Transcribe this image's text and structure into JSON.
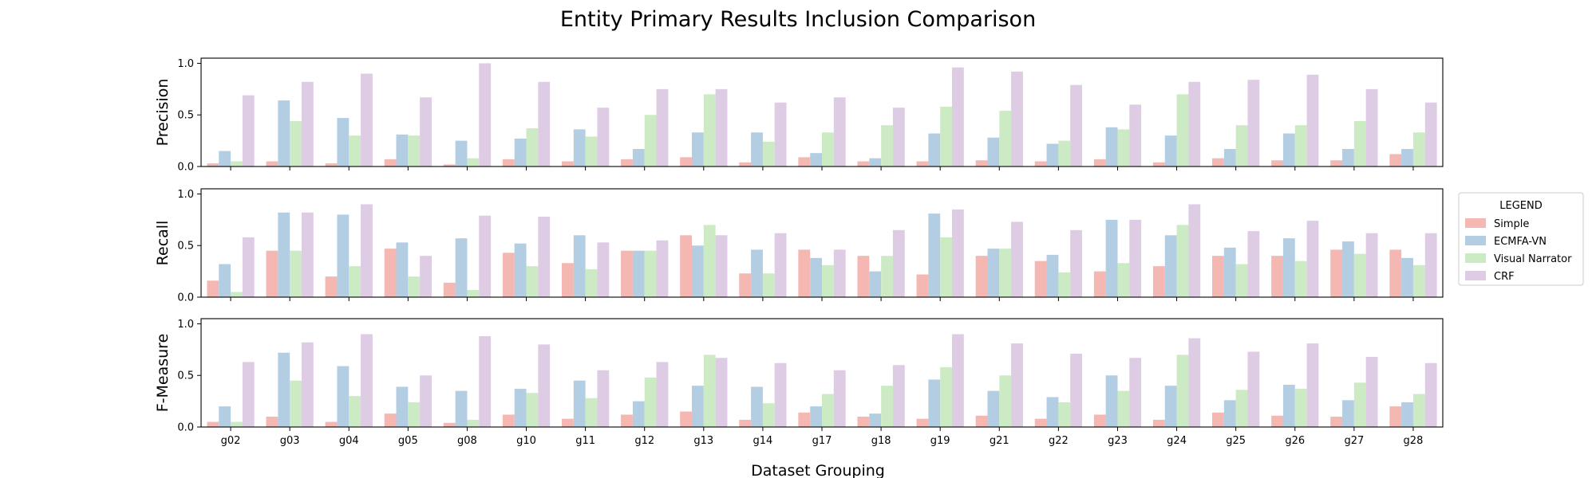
{
  "chart_data": {
    "type": "bar",
    "title": "Entity Primary Results Inclusion Comparison",
    "xlabel": "Dataset Grouping",
    "categories": [
      "g02",
      "g03",
      "g04",
      "g05",
      "g08",
      "g10",
      "g11",
      "g12",
      "g13",
      "g14",
      "g17",
      "g18",
      "g19",
      "g21",
      "g22",
      "g23",
      "g24",
      "g25",
      "g26",
      "g27",
      "g28"
    ],
    "ylim": [
      0,
      1.05
    ],
    "yticks": [
      "0.0",
      "0.5",
      "1.0"
    ],
    "legend": {
      "title": "LEGEND",
      "placement": "center-right"
    },
    "series": [
      {
        "name": "Simple",
        "color": "#f4b7b2"
      },
      {
        "name": "ECMFA-VN",
        "color": "#b3cde3"
      },
      {
        "name": "Visual Narrator",
        "color": "#ccebc5"
      },
      {
        "name": "CRF",
        "color": "#decbe4"
      }
    ],
    "panels": [
      {
        "ylabel": "Precision",
        "values": [
          [
            0.03,
            0.05,
            0.03,
            0.07,
            0.02,
            0.07,
            0.05,
            0.07,
            0.09,
            0.04,
            0.09,
            0.05,
            0.05,
            0.06,
            0.05,
            0.07,
            0.04,
            0.08,
            0.06,
            0.06,
            0.12
          ],
          [
            0.15,
            0.64,
            0.47,
            0.31,
            0.25,
            0.27,
            0.36,
            0.17,
            0.33,
            0.33,
            0.13,
            0.08,
            0.32,
            0.28,
            0.22,
            0.38,
            0.3,
            0.17,
            0.32,
            0.17,
            0.17
          ],
          [
            0.05,
            0.44,
            0.3,
            0.3,
            0.08,
            0.37,
            0.29,
            0.5,
            0.7,
            0.24,
            0.33,
            0.4,
            0.58,
            0.54,
            0.25,
            0.36,
            0.7,
            0.4,
            0.4,
            0.44,
            0.33
          ],
          [
            0.69,
            0.82,
            0.9,
            0.67,
            1.0,
            0.82,
            0.57,
            0.75,
            0.75,
            0.62,
            0.67,
            0.57,
            0.96,
            0.92,
            0.79,
            0.6,
            0.82,
            0.84,
            0.89,
            0.75,
            0.62
          ]
        ]
      },
      {
        "ylabel": "Recall",
        "values": [
          [
            0.16,
            0.45,
            0.2,
            0.47,
            0.14,
            0.43,
            0.33,
            0.45,
            0.6,
            0.23,
            0.46,
            0.4,
            0.22,
            0.4,
            0.35,
            0.25,
            0.3,
            0.4,
            0.4,
            0.46,
            0.46
          ],
          [
            0.32,
            0.82,
            0.8,
            0.53,
            0.57,
            0.52,
            0.6,
            0.45,
            0.5,
            0.46,
            0.38,
            0.25,
            0.81,
            0.47,
            0.41,
            0.75,
            0.6,
            0.48,
            0.57,
            0.54,
            0.38
          ],
          [
            0.05,
            0.45,
            0.3,
            0.2,
            0.07,
            0.3,
            0.27,
            0.45,
            0.7,
            0.23,
            0.31,
            0.4,
            0.58,
            0.47,
            0.24,
            0.33,
            0.7,
            0.32,
            0.35,
            0.42,
            0.31
          ],
          [
            0.58,
            0.82,
            0.9,
            0.4,
            0.79,
            0.78,
            0.53,
            0.55,
            0.6,
            0.62,
            0.46,
            0.65,
            0.85,
            0.73,
            0.65,
            0.75,
            0.9,
            0.64,
            0.74,
            0.62,
            0.62
          ]
        ]
      },
      {
        "ylabel": "F-Measure",
        "values": [
          [
            0.05,
            0.1,
            0.05,
            0.13,
            0.04,
            0.12,
            0.08,
            0.12,
            0.15,
            0.07,
            0.14,
            0.1,
            0.08,
            0.11,
            0.08,
            0.12,
            0.07,
            0.14,
            0.11,
            0.1,
            0.2
          ],
          [
            0.2,
            0.72,
            0.59,
            0.39,
            0.35,
            0.37,
            0.45,
            0.25,
            0.4,
            0.39,
            0.2,
            0.13,
            0.46,
            0.35,
            0.29,
            0.5,
            0.4,
            0.26,
            0.41,
            0.26,
            0.24
          ],
          [
            0.05,
            0.45,
            0.3,
            0.24,
            0.07,
            0.33,
            0.28,
            0.48,
            0.7,
            0.23,
            0.32,
            0.4,
            0.58,
            0.5,
            0.24,
            0.35,
            0.7,
            0.36,
            0.37,
            0.43,
            0.32
          ],
          [
            0.63,
            0.82,
            0.9,
            0.5,
            0.88,
            0.8,
            0.55,
            0.63,
            0.67,
            0.62,
            0.55,
            0.6,
            0.9,
            0.81,
            0.71,
            0.67,
            0.86,
            0.73,
            0.81,
            0.68,
            0.62
          ]
        ]
      }
    ]
  }
}
